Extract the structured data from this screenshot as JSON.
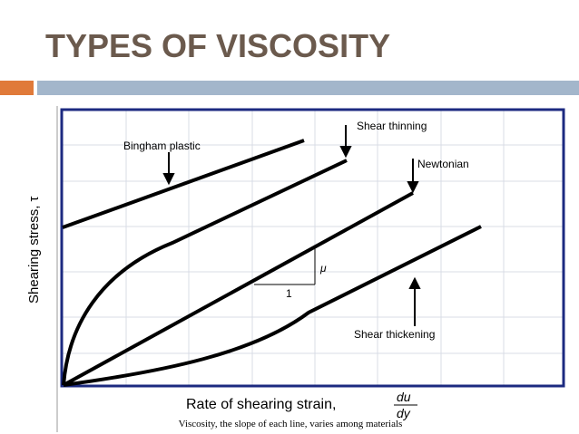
{
  "header": {
    "title": "TYPES OF VISCOSITY"
  },
  "diagram": {
    "curve_labels": [
      "Bingham plastic",
      "Shear thinning",
      "Newtonian",
      "Shear thickening"
    ],
    "slope_labels": {
      "rise": "μ",
      "run": "1"
    },
    "y_axis_label": "Shearing stress, τ",
    "x_axis_label": "Rate of shearing strain,",
    "x_axis_fraction": {
      "numerator": "du",
      "denominator": "dy"
    },
    "caption": "Viscosity, the slope of each line, varies among materials"
  }
}
